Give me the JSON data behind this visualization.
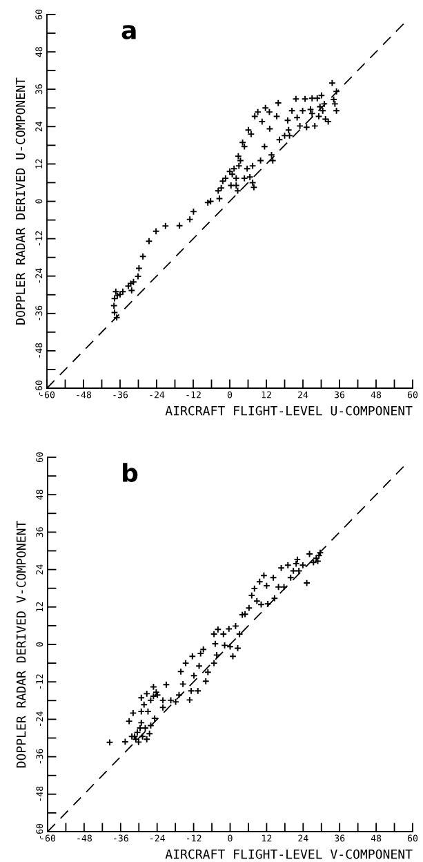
{
  "chart_data": [
    {
      "type": "scatter",
      "title": "a",
      "xlabel": "AIRCRAFT FLIGHT-LEVEL U-COMPONENT",
      "ylabel": "DOPPLER RADAR DERIVED U-COMPONENT",
      "marker": "cross",
      "grid": false,
      "legend": false,
      "xlim": [
        -60,
        60
      ],
      "ylim": [
        -60,
        60
      ],
      "xticks": [
        -60,
        {
          "value": -54,
          "label": null
        },
        -48,
        {
          "value": -42,
          "label": null
        },
        -36,
        {
          "value": -30,
          "label": null
        },
        -24,
        {
          "value": -18,
          "label": null
        },
        -12,
        {
          "value": -6,
          "label": null
        },
        0,
        {
          "value": 6,
          "label": null
        },
        12,
        {
          "value": 18,
          "label": null
        },
        24,
        {
          "value": 30,
          "label": null
        },
        36,
        {
          "value": 42,
          "label": null
        },
        48,
        {
          "value": 54,
          "label": null
        },
        60
      ],
      "yticks": [
        -60,
        {
          "value": -54,
          "label": null
        },
        -48,
        {
          "value": -42,
          "label": null
        },
        -36,
        {
          "value": -30,
          "label": null
        },
        -24,
        {
          "value": -18,
          "label": null
        },
        -12,
        {
          "value": -6,
          "label": null
        },
        0,
        {
          "value": 6,
          "label": null
        },
        12,
        {
          "value": 18,
          "label": null
        },
        24,
        {
          "value": 30,
          "label": null
        },
        36,
        {
          "value": 42,
          "label": null
        },
        48,
        {
          "value": 54,
          "label": null
        },
        60
      ],
      "series": [
        {
          "color": "#000000",
          "x": [
            -37.1,
            -37.8,
            -38,
            -37.8,
            -37.4,
            -36.9,
            -36,
            -35.1,
            -33.3,
            -32.5,
            -31.6,
            -32.2,
            -30.1,
            -29.8,
            -28.5,
            -26.5,
            -24.2,
            -21.1,
            -16.5,
            -13.1,
            -11.9,
            -7.2,
            -6.3,
            -3.4,
            -3.8,
            -2.8,
            -2.3,
            -1.4,
            0,
            0.8,
            1.4,
            2.1,
            2.6,
            2.1,
            3,
            3.5,
            2.8,
            4.2,
            4.8,
            6.1,
            7,
            8.2,
            9.2,
            10.6,
            11.7,
            13,
            13.1,
            15.9,
            15.4,
            5.7,
            6.6,
            7.9,
            7.5,
            10.1,
            11.4,
            13.7,
            14.1,
            16.3,
            18,
            19.3,
            19.6,
            20.4,
            21.7,
            22.1,
            23,
            23.9,
            24.7,
            25.2,
            26.5,
            27,
            27.9,
            28.7,
            29.2,
            30.1,
            30.5,
            31.4,
            32.3,
            33.6,
            34.1,
            35,
            35,
            34.5,
            31,
            29.6,
            19,
            4.8,
            0.4,
            7.5,
            27
          ],
          "values": [
            -37.3,
            -35.7,
            -33.5,
            -31.2,
            -29,
            -30.3,
            -29.9,
            -29,
            -27.2,
            -26.4,
            -25.9,
            -28.6,
            -24.1,
            -21.5,
            -17.7,
            -12.8,
            -9.6,
            -7.9,
            -7.8,
            -5.8,
            -3.3,
            -0.4,
            0,
            0.9,
            3.4,
            4.3,
            6.5,
            7.4,
            9.6,
            8.7,
            10.5,
            7.4,
            3.4,
            5.1,
            11.4,
            13.1,
            14.5,
            18.9,
            17.6,
            22.9,
            21.6,
            27.3,
            28.7,
            25.6,
            30,
            28.7,
            23.3,
            31.6,
            27.3,
            10.5,
            7.8,
            4.5,
            11.4,
            13.1,
            17.6,
            14.9,
            13.1,
            19.8,
            21.1,
            22.9,
            21.1,
            29.1,
            32.9,
            26.9,
            24.2,
            29.1,
            32.9,
            23.8,
            29.5,
            33.1,
            24.2,
            33.1,
            27.3,
            34,
            29.1,
            26.4,
            25.6,
            38,
            32.7,
            35.3,
            29.1,
            31.3,
            31.3,
            30.4,
            26,
            7.4,
            5.1,
            6,
            28.2
          ]
        },
        {
          "type": "line",
          "line_style": "dashed",
          "marker": "none",
          "color": "#000000",
          "x": [
            -60,
            57
          ],
          "values": [
            -60,
            57
          ]
        }
      ]
    },
    {
      "type": "scatter",
      "title": "b",
      "xlabel": "AIRCRAFT FLIGHT-LEVEL V-COMPONENT",
      "ylabel": "DOPPLER RADAR DERIVED V-COMPONENT",
      "marker": "cross",
      "grid": false,
      "legend": false,
      "xlim": [
        -60,
        60
      ],
      "ylim": [
        -60,
        60
      ],
      "xticks": [
        -60,
        {
          "value": -54,
          "label": null
        },
        -48,
        {
          "value": -42,
          "label": null
        },
        -36,
        {
          "value": -30,
          "label": null
        },
        -24,
        {
          "value": -18,
          "label": null
        },
        -12,
        {
          "value": -6,
          "label": null
        },
        0,
        {
          "value": 6,
          "label": null
        },
        12,
        {
          "value": 18,
          "label": null
        },
        24,
        {
          "value": 30,
          "label": null
        },
        36,
        {
          "value": 42,
          "label": null
        },
        48,
        {
          "value": 54,
          "label": null
        },
        60
      ],
      "yticks": [
        -60,
        {
          "value": -54,
          "label": null
        },
        -48,
        {
          "value": -42,
          "label": null
        },
        -36,
        {
          "value": -30,
          "label": null
        },
        -24,
        {
          "value": -18,
          "label": null
        },
        -12,
        {
          "value": -6,
          "label": null
        },
        0,
        {
          "value": 6,
          "label": null
        },
        12,
        {
          "value": 18,
          "label": null
        },
        24,
        {
          "value": 30,
          "label": null
        },
        36,
        {
          "value": 42,
          "label": null
        },
        48,
        {
          "value": 54,
          "label": null
        },
        60
      ],
      "series": [
        {
          "color": "#000000",
          "x": [
            -39.6,
            -34.5,
            -33.2,
            -32.3,
            -31.9,
            -31,
            -30.5,
            -29.6,
            -29.2,
            -29.2,
            -29.2,
            -28.3,
            -27.4,
            -27,
            -26.5,
            -26.1,
            -26.1,
            -25.2,
            -24.8,
            -23.9,
            -22.1,
            -22.1,
            -21,
            -19.5,
            -17.9,
            -16.8,
            -16.2,
            -15.5,
            -14.6,
            -13.3,
            -12.8,
            -12.4,
            -11.9,
            -10.6,
            -10.2,
            -9.7,
            -8.8,
            -8,
            -7.3,
            -5.3,
            -5.3,
            -4.9,
            -4.4,
            -4,
            -2.2,
            -1.8,
            -0.4,
            0,
            0.9,
            1.8,
            2.5,
            3.1,
            4,
            4.9,
            6.2,
            7.1,
            8,
            8.8,
            9.7,
            10.2,
            11.1,
            12,
            12.4,
            14.2,
            14.6,
            15.9,
            16.8,
            17.7,
            19,
            19.9,
            20.8,
            22.1,
            22.6,
            23.9,
            25.2,
            26.1,
            27.4,
            28.3,
            29.2,
            29.6,
            28.8,
            21.7,
            -27.4,
            -30.1,
            -31.4,
            -28.8,
            -25.2,
            -24.3,
            -27.9
          ],
          "values": [
            -31.4,
            -31.2,
            -24.6,
            -29.5,
            -22,
            -30.4,
            -28.2,
            -26.8,
            -25.1,
            -21.5,
            -17.1,
            -19.3,
            -15.8,
            -21.5,
            -28.6,
            -26,
            -17.9,
            -13.6,
            -23.7,
            -16.2,
            -20.2,
            -17.9,
            -12.9,
            -17.9,
            -18.4,
            -16.2,
            -8.7,
            -12.7,
            -6,
            -17.8,
            -14.9,
            -3.8,
            -10,
            -14.9,
            -6.9,
            -2.9,
            -1.6,
            -11.8,
            -8.9,
            3.3,
            -6,
            0.2,
            -3.4,
            4.8,
            3.3,
            -0.3,
            5,
            -0.7,
            -3.8,
            5.9,
            -1.2,
            3.3,
            9.5,
            9.7,
            11.7,
            15.7,
            17.9,
            13.9,
            20.1,
            12.8,
            22.1,
            18.8,
            13,
            21.4,
            14.8,
            18.4,
            24.5,
            18.4,
            25.4,
            21.4,
            23.6,
            27.2,
            23.6,
            25.4,
            19.7,
            29,
            26.3,
            27.6,
            28.5,
            29.4,
            26.7,
            25.9,
            -30.4,
            -31.3,
            -29.5,
            -29.5,
            -16.6,
            -15.3,
            -26.8
          ]
        },
        {
          "type": "line",
          "line_style": "dashed",
          "marker": "none",
          "color": "#000000",
          "x": [
            -60,
            57
          ],
          "values": [
            -60,
            57
          ]
        }
      ]
    }
  ]
}
